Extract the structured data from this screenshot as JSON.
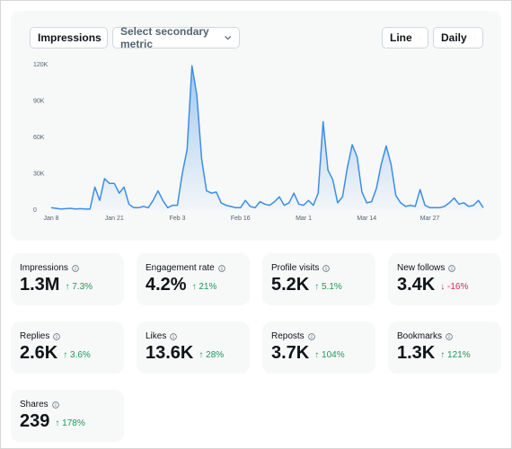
{
  "controls": {
    "primary_metric": "Impressions",
    "secondary_metric": "Select secondary metric",
    "chart_style": "Line",
    "interval": "Daily"
  },
  "chart_data": {
    "type": "line",
    "categories": [
      "Jan 8",
      null,
      null,
      null,
      null,
      null,
      null,
      null,
      null,
      null,
      null,
      null,
      null,
      "Jan 21",
      null,
      null,
      null,
      null,
      null,
      null,
      null,
      null,
      null,
      null,
      null,
      null,
      "Feb 3",
      null,
      null,
      null,
      null,
      null,
      null,
      null,
      null,
      null,
      null,
      null,
      null,
      "Feb 16",
      null,
      null,
      null,
      null,
      null,
      null,
      null,
      null,
      null,
      null,
      null,
      null,
      "Mar 1",
      null,
      null,
      null,
      null,
      null,
      null,
      null,
      null,
      null,
      null,
      null,
      null,
      "Mar 14",
      null,
      null,
      null,
      null,
      null,
      null,
      null,
      null,
      null,
      null,
      null,
      null,
      "Mar 27",
      null,
      null,
      null,
      null,
      null,
      null,
      null,
      null,
      null,
      null,
      null
    ],
    "series": [
      {
        "name": "Impressions",
        "color": "#3b8ee8",
        "values": [
          2000,
          1500,
          1000,
          1200,
          1500,
          1000,
          1200,
          1000,
          800,
          19000,
          8000,
          26000,
          22000,
          22000,
          14000,
          19000,
          5000,
          2000,
          2000,
          3000,
          2000,
          8000,
          16000,
          8000,
          2000,
          4000,
          4000,
          30000,
          50000,
          119000,
          95000,
          42000,
          16000,
          14000,
          15000,
          6000,
          4000,
          3000,
          2000,
          2000,
          8000,
          3000,
          2000,
          7000,
          5000,
          4000,
          7000,
          11000,
          4000,
          6000,
          14000,
          5000,
          4000,
          8000,
          4000,
          14000,
          73000,
          33000,
          25000,
          6000,
          11000,
          35000,
          54000,
          44000,
          15000,
          6000,
          7000,
          18000,
          38000,
          53000,
          38000,
          12000,
          6000,
          3000,
          4000,
          3000,
          17000,
          4000,
          2000,
          2000,
          2000,
          3000,
          6000,
          10000,
          5000,
          6000,
          3000,
          4000,
          8000,
          2000
        ]
      }
    ],
    "ylim": [
      0,
      120000
    ],
    "yticks": [
      0,
      {
        "value": 30000,
        "label": "30K"
      },
      {
        "value": 60000,
        "label": "60K"
      },
      {
        "value": 90000,
        "label": "90K"
      },
      {
        "value": 120000,
        "label": "120K"
      }
    ],
    "grid": false,
    "area_fill": true
  },
  "metrics": [
    {
      "label": "Impressions",
      "value": "1.3M",
      "change": "↑ 7.3%",
      "trend": "up"
    },
    {
      "label": "Engagement rate",
      "value": "4.2%",
      "change": "↑ 21%",
      "trend": "up"
    },
    {
      "label": "Profile visits",
      "value": "5.2K",
      "change": "↑ 5.1%",
      "trend": "up"
    },
    {
      "label": "New follows",
      "value": "3.4K",
      "change": "↓ -16%",
      "trend": "down"
    },
    {
      "label": "Replies",
      "value": "2.6K",
      "change": "↑ 3.6%",
      "trend": "up"
    },
    {
      "label": "Likes",
      "value": "13.6K",
      "change": "↑ 28%",
      "trend": "up"
    },
    {
      "label": "Reposts",
      "value": "3.7K",
      "change": "↑ 104%",
      "trend": "up"
    },
    {
      "label": "Bookmarks",
      "value": "1.3K",
      "change": "↑ 121%",
      "trend": "up"
    },
    {
      "label": "Shares",
      "value": "239",
      "change": "↑ 178%",
      "trend": "up"
    }
  ]
}
